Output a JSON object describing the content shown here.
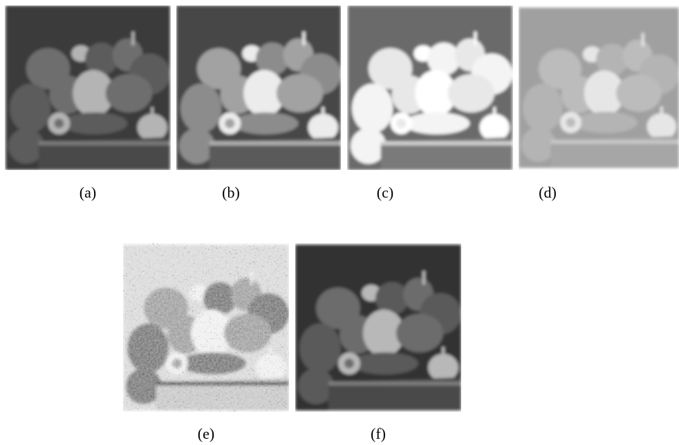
{
  "figure": {
    "panels": [
      {
        "id": "a",
        "caption": "(a)",
        "tone": "original"
      },
      {
        "id": "b",
        "caption": "(b)",
        "tone": "enhanced"
      },
      {
        "id": "c",
        "caption": "(c)",
        "tone": "saturated"
      },
      {
        "id": "d",
        "caption": "(d)",
        "tone": "washed"
      },
      {
        "id": "e",
        "caption": "(e)",
        "tone": "edge-noisy"
      },
      {
        "id": "f",
        "caption": "(f)",
        "tone": "original"
      }
    ]
  }
}
